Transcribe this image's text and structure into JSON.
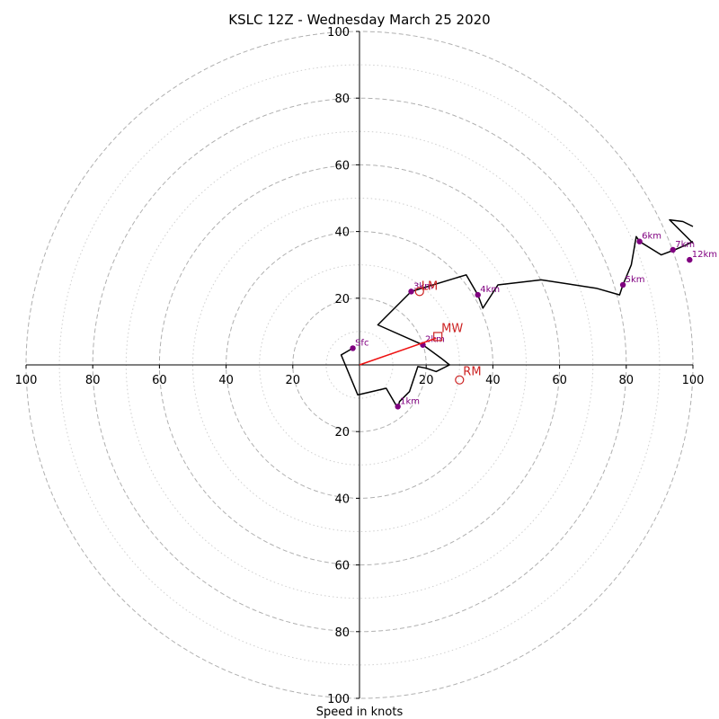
{
  "chart_data": {
    "type": "hodograph",
    "title": "KSLC 12Z - Wednesday March 25 2020",
    "xlabel": "Speed in knots",
    "units": "knots",
    "range": 100,
    "major_rings": [
      20,
      40,
      60,
      80,
      100
    ],
    "minor_rings": [
      10,
      30,
      50,
      70,
      90
    ],
    "tick_labels": {
      "x_left": [
        "100",
        "80",
        "60",
        "40",
        "20"
      ],
      "x_right": [
        "20",
        "40",
        "60",
        "80",
        "100"
      ],
      "y_top": [
        "100",
        "80",
        "60",
        "40",
        "20"
      ],
      "y_bottom": [
        "20",
        "40",
        "60",
        "80",
        "100"
      ]
    },
    "tick_values": [
      20,
      40,
      60,
      80,
      100
    ],
    "trace": [
      {
        "u": -2,
        "v": 5
      },
      {
        "u": -5.5,
        "v": 3
      },
      {
        "u": -0.5,
        "v": -9
      },
      {
        "u": 8,
        "v": -7
      },
      {
        "u": 11.5,
        "v": -13
      },
      {
        "u": 12,
        "v": -11
      },
      {
        "u": 15,
        "v": -8
      },
      {
        "u": 17.5,
        "v": -0.5
      },
      {
        "u": 20,
        "v": -1
      },
      {
        "u": 23,
        "v": -2
      },
      {
        "u": 27,
        "v": 0
      },
      {
        "u": 24.5,
        "v": 2
      },
      {
        "u": 19,
        "v": 6
      },
      {
        "u": 5.5,
        "v": 12
      },
      {
        "u": 15.5,
        "v": 22
      },
      {
        "u": 32,
        "v": 27
      },
      {
        "u": 35.5,
        "v": 21
      },
      {
        "u": 37,
        "v": 17
      },
      {
        "u": 41.5,
        "v": 24
      },
      {
        "u": 54.5,
        "v": 25.5
      },
      {
        "u": 71,
        "v": 23
      },
      {
        "u": 78,
        "v": 21
      },
      {
        "u": 79,
        "v": 24
      },
      {
        "u": 81.5,
        "v": 30
      },
      {
        "u": 83,
        "v": 38.5
      },
      {
        "u": 84,
        "v": 37
      },
      {
        "u": 90.5,
        "v": 33
      },
      {
        "u": 94.5,
        "v": 34.5
      },
      {
        "u": 98,
        "v": 36
      },
      {
        "u": 100,
        "v": 37
      }
    ],
    "hook": [
      {
        "u": 100,
        "v": 41.5
      },
      {
        "u": 97,
        "v": 43
      },
      {
        "u": 93,
        "v": 43.5
      },
      {
        "u": 100,
        "v": 36.5
      }
    ],
    "height_markers": [
      {
        "label": "Sfc",
        "u": -2,
        "v": 5
      },
      {
        "label": "1km",
        "u": 11.5,
        "v": -12.5
      },
      {
        "label": "2km",
        "u": 19,
        "v": 6
      },
      {
        "label": "3km",
        "u": 15.5,
        "v": 22
      },
      {
        "label": "4km",
        "u": 35.5,
        "v": 21
      },
      {
        "label": "5km",
        "u": 79,
        "v": 24
      },
      {
        "label": "6km",
        "u": 84,
        "v": 37
      },
      {
        "label": "7km",
        "u": 94,
        "v": 34.5
      },
      {
        "label": "12km",
        "u": 99,
        "v": 31.5
      }
    ],
    "storm_motion": {
      "mean_wind": {
        "label": "MW",
        "u": 23.5,
        "v": 8.5
      },
      "left_mover": {
        "label": "LM",
        "u": 18,
        "v": 22
      },
      "right_mover": {
        "label": "RM",
        "u": 30,
        "v": -4.5
      },
      "shear_vector_end": {
        "u": 23,
        "v": 8
      }
    },
    "colors": {
      "trace": "#000000",
      "height_marker": "#800080",
      "storm_motion": "#cc2222",
      "shear_vector": "#ee1111",
      "major_grid": "#b0b0b0",
      "minor_grid": "#cfcfcf"
    }
  }
}
